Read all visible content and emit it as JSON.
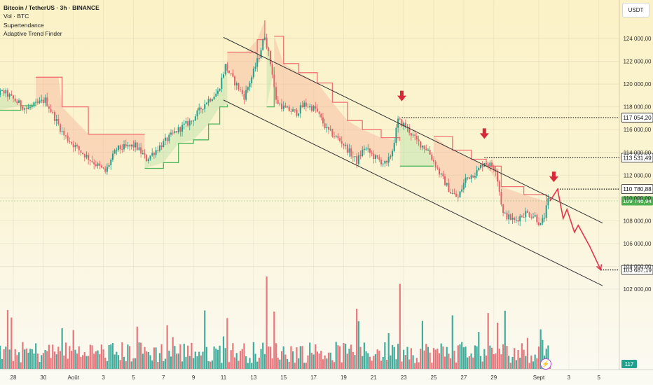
{
  "header": {
    "title": "Bitcoin / TetherUS · 3h · BINANCE",
    "indicators": [
      "Vol · BTC",
      "Supertendance",
      "Adaptive Trend Finder"
    ],
    "currency": "USDT"
  },
  "badges": {
    "volume_value": "117",
    "flash_icon": "lightning-icon"
  },
  "colors": {
    "up": "#22a08e",
    "down": "#e55f67",
    "arrow": "#d8293a",
    "channel": "#333333",
    "supertrend_up": "#49b65b",
    "supertrend_down": "#f07272",
    "current_price_badge": "#4caf50"
  },
  "chart_data": {
    "type": "candlestick",
    "y_axis": {
      "range": [
        101000,
        124800
      ],
      "ticks": [
        102000,
        104000,
        106000,
        108000,
        110000,
        112000,
        114000,
        116000,
        118000,
        120000,
        122000,
        124000
      ],
      "tick_labels": [
        "102 000,00",
        "104 000,00",
        "106 000,00",
        "108 000,00",
        "110 000,00",
        "112 000,00",
        "114 000,00",
        "116 000,00",
        "118 000,00",
        "120 000,00",
        "122 000,00",
        "124 000,00"
      ]
    },
    "x_axis": {
      "dates": [
        "2025-07-28",
        "2025-07-30",
        "2025-08-01",
        "2025-08-03",
        "2025-08-05",
        "2025-08-07",
        "2025-08-09",
        "2025-08-11",
        "2025-08-13",
        "2025-08-15",
        "2025-08-17",
        "2025-08-19",
        "2025-08-21",
        "2025-08-23",
        "2025-08-25",
        "2025-08-27",
        "2025-08-29",
        "2025-09-01",
        "2025-09-03",
        "2025-09-05"
      ],
      "labels": [
        "28",
        "30",
        "Août",
        "3",
        "5",
        "7",
        "9",
        "11",
        "13",
        "15",
        "17",
        "19",
        "21",
        "23",
        "25",
        "27",
        "29",
        "Sept",
        "3",
        "5"
      ]
    },
    "price_path": [
      [
        "2025-07-26 00:00",
        118800
      ],
      [
        "2025-07-27 12:00",
        119300
      ],
      [
        "2025-07-29 00:00",
        117800
      ],
      [
        "2025-07-30 06:00",
        118600
      ],
      [
        "2025-07-31 12:00",
        115500
      ],
      [
        "2025-08-01 12:00",
        114200
      ],
      [
        "2025-08-02 12:00",
        113100
      ],
      [
        "2025-08-03 06:00",
        112300
      ],
      [
        "2025-08-04 00:00",
        114300
      ],
      [
        "2025-08-05 06:00",
        114600
      ],
      [
        "2025-08-06 00:00",
        113400
      ],
      [
        "2025-08-07 00:00",
        114700
      ],
      [
        "2025-08-08 00:00",
        115900
      ],
      [
        "2025-08-09 00:00",
        116800
      ],
      [
        "2025-08-10 00:00",
        118500
      ],
      [
        "2025-08-10 18:00",
        119300
      ],
      [
        "2025-08-11 06:00",
        121600
      ],
      [
        "2025-08-11 18:00",
        120400
      ],
      [
        "2025-08-12 12:00",
        118900
      ],
      [
        "2025-08-13 00:00",
        120600
      ],
      [
        "2025-08-13 12:00",
        122500
      ],
      [
        "2025-08-13 21:00",
        124300
      ],
      [
        "2025-08-14 09:00",
        121000
      ],
      [
        "2025-08-14 15:00",
        118500
      ],
      [
        "2025-08-15 06:00",
        117800
      ],
      [
        "2025-08-16 00:00",
        117500
      ],
      [
        "2025-08-16 12:00",
        118200
      ],
      [
        "2025-08-17 06:00",
        117800
      ],
      [
        "2025-08-18 00:00",
        116000
      ],
      [
        "2025-08-19 00:00",
        114900
      ],
      [
        "2025-08-20 00:00",
        113200
      ],
      [
        "2025-08-20 12:00",
        114400
      ],
      [
        "2025-08-21 06:00",
        113500
      ],
      [
        "2025-08-22 00:00",
        112900
      ],
      [
        "2025-08-22 09:00",
        114200
      ],
      [
        "2025-08-22 18:00",
        116800
      ],
      [
        "2025-08-23 06:00",
        116300
      ],
      [
        "2025-08-24 00:00",
        115000
      ],
      [
        "2025-08-24 18:00",
        114200
      ],
      [
        "2025-08-25 12:00",
        112200
      ],
      [
        "2025-08-26 06:00",
        110500
      ],
      [
        "2025-08-26 18:00",
        110000
      ],
      [
        "2025-08-27 06:00",
        111700
      ],
      [
        "2025-08-28 00:00",
        112300
      ],
      [
        "2025-08-28 12:00",
        113200
      ],
      [
        "2025-08-29 06:00",
        112600
      ],
      [
        "2025-08-29 18:00",
        108600
      ],
      [
        "2025-08-30 12:00",
        108000
      ],
      [
        "2025-08-31 06:00",
        108700
      ],
      [
        "2025-08-31 21:00",
        108400
      ],
      [
        "2025-09-01 06:00",
        107600
      ],
      [
        "2025-09-01 12:00",
        108400
      ],
      [
        "2025-09-01 18:00",
        109747
      ]
    ],
    "supertrend_segments": [
      {
        "trend": "up",
        "points": [
          [
            "2025-07-26 00:00",
            117800
          ],
          [
            "2025-07-27 00:00",
            117700
          ],
          [
            "2025-07-28 12:00",
            118100
          ],
          [
            "2025-07-29 12:00",
            118400
          ]
        ]
      },
      {
        "trend": "down",
        "points": [
          [
            "2025-07-29 12:00",
            120600
          ],
          [
            "2025-07-31 00:00",
            120600
          ],
          [
            "2025-07-31 06:00",
            118000
          ],
          [
            "2025-08-02 00:00",
            115600
          ],
          [
            "2025-08-05 18:00",
            115600
          ]
        ]
      },
      {
        "trend": "up",
        "points": [
          [
            "2025-08-05 18:00",
            112600
          ],
          [
            "2025-08-07 00:00",
            113100
          ],
          [
            "2025-08-08 00:00",
            114800
          ],
          [
            "2025-08-09 00:00",
            115100
          ],
          [
            "2025-08-10 00:00",
            116500
          ],
          [
            "2025-08-10 18:00",
            118000
          ],
          [
            "2025-08-11 06:00",
            118200
          ]
        ]
      },
      {
        "trend": "down",
        "points": [
          [
            "2025-08-11 06:00",
            122800
          ],
          [
            "2025-08-12 12:00",
            122800
          ],
          [
            "2025-08-13 06:00",
            123900
          ],
          [
            "2025-08-13 18:00",
            125600
          ]
        ]
      },
      {
        "trend": "up",
        "points": [
          [
            "2025-08-13 21:00",
            118000
          ],
          [
            "2025-08-14 09:00",
            121500
          ]
        ]
      },
      {
        "trend": "down",
        "points": [
          [
            "2025-08-14 09:00",
            124200
          ],
          [
            "2025-08-15 00:00",
            121800
          ],
          [
            "2025-08-16 00:00",
            121000
          ],
          [
            "2025-08-17 06:00",
            120100
          ],
          [
            "2025-08-18 06:00",
            118400
          ],
          [
            "2025-08-19 06:00",
            116800
          ],
          [
            "2025-08-20 06:00",
            116000
          ],
          [
            "2025-08-21 12:00",
            115300
          ],
          [
            "2025-08-22 18:00",
            115000
          ]
        ]
      },
      {
        "trend": "up",
        "points": [
          [
            "2025-08-22 18:00",
            112800
          ],
          [
            "2025-08-25 00:00",
            112800
          ]
        ]
      },
      {
        "trend": "down",
        "points": [
          [
            "2025-08-25 00:00",
            115400
          ],
          [
            "2025-08-26 06:00",
            114200
          ],
          [
            "2025-08-27 12:00",
            113400
          ],
          [
            "2025-08-28 12:00",
            112800
          ],
          [
            "2025-08-29 12:00",
            111000
          ],
          [
            "2025-08-31 00:00",
            110300
          ],
          [
            "2025-09-01 12:00",
            109700
          ]
        ]
      }
    ],
    "channel": {
      "upper": [
        [
          "2025-08-11 00:00",
          124100
        ],
        [
          "2025-09-05 06:00",
          107800
        ]
      ],
      "lower": [
        [
          "2025-08-11 00:00",
          118600
        ],
        [
          "2025-09-05 06:00",
          102300
        ]
      ]
    },
    "projection": [
      [
        "2025-09-01 18:00",
        109747
      ],
      [
        "2025-09-02 06:00",
        110780
      ],
      [
        "2025-09-02 15:00",
        108200
      ],
      [
        "2025-09-02 21:00",
        109000
      ],
      [
        "2025-09-03 09:00",
        107000
      ],
      [
        "2025-09-03 15:00",
        107600
      ],
      [
        "2025-09-04 09:00",
        105800
      ],
      [
        "2025-09-05 03:00",
        103690
      ]
    ],
    "resistance_arrows": [
      [
        "2025-08-22 21:00",
        118800
      ],
      [
        "2025-08-28 09:00",
        115500
      ],
      [
        "2025-09-02 00:00",
        111700
      ]
    ],
    "levels": [
      {
        "value": 117054.2,
        "label": "117 054,20",
        "start": "2025-08-22 21:00"
      },
      {
        "value": 113531.49,
        "label": "113 531,49",
        "start": "2025-08-28 09:00"
      },
      {
        "value": 110780.88,
        "label": "110 780,88",
        "start": "2025-09-02 06:00"
      },
      {
        "value": 103687.19,
        "label": "103 687,19",
        "start": "2025-09-05 03:00"
      }
    ],
    "current_price": {
      "value": 109746.94,
      "label": "109 746,94"
    },
    "volume": {
      "spikes": [
        [
          "2025-08-13 21:00",
          1.0
        ],
        [
          "2025-08-22 18:00",
          0.92
        ],
        [
          "2025-08-14 09:00",
          0.62
        ],
        [
          "2025-08-26 06:00",
          0.58
        ],
        [
          "2025-08-24 06:00",
          0.52
        ],
        [
          "2025-08-11 06:00",
          0.55
        ],
        [
          "2025-08-29 18:00",
          0.63
        ],
        [
          "2025-08-01 00:00",
          0.42
        ],
        [
          "2025-07-31 06:00",
          0.44
        ],
        [
          "2025-08-29 06:00",
          0.5
        ]
      ],
      "typical_level": 0.18
    }
  }
}
